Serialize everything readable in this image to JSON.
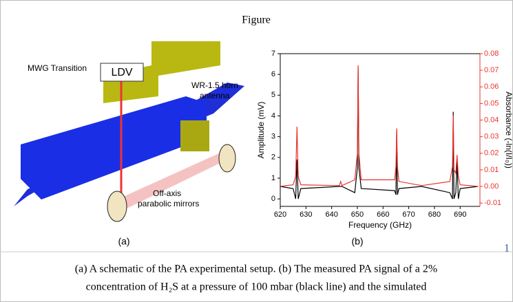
{
  "header": {
    "title": "Figure"
  },
  "panel_a": {
    "label": "(a)",
    "ldv": "LDV",
    "mwg": "MWG Transition",
    "horn": [
      "WR-1.5 horn",
      "antenna"
    ],
    "mirrors": [
      "Off-axis",
      "parabolic mirrors"
    ]
  },
  "chart_data": {
    "type": "line",
    "label": "(b)",
    "xlabel": "Frequency (GHz)",
    "ylabel": "Amplitude (mV)",
    "y2label": "Absorbance (-ln(I/I₀))",
    "xlim": [
      620,
      697.7
    ],
    "xticks": [
      620,
      630,
      640,
      650,
      660,
      670,
      680,
      690
    ],
    "ylim": [
      -0.36,
      7
    ],
    "yticks": [
      0,
      1,
      2,
      3,
      4,
      5,
      6,
      7
    ],
    "y2lim": [
      -0.012,
      0.08
    ],
    "y2ticks": [
      -0.01,
      {
        "value": 0,
        "label": "0.00"
      },
      0.01,
      0.02,
      0.03,
      0.04,
      0.05,
      0.06,
      0.07,
      0.08
    ],
    "x": [
      620,
      625,
      626,
      626.5,
      627,
      628,
      643,
      643.5,
      644,
      649,
      650,
      650.3,
      650.6,
      651.5,
      664.5,
      665,
      665.3,
      665.6,
      666.2,
      675,
      686,
      687,
      687.3,
      687.6,
      688.3,
      688.8,
      689.3,
      690,
      697
    ],
    "series": [
      {
        "color": "#000000",
        "values": [
          0.6,
          0.5,
          0,
          1.9,
          0,
          0.5,
          0.6,
          0.6,
          0.6,
          0.3,
          1.5,
          6.3,
          1.5,
          0.5,
          0.4,
          0.2,
          3.3,
          0.2,
          0.5,
          0.6,
          0.3,
          0,
          4.2,
          0,
          0.3,
          1.8,
          0,
          0.5,
          0.6
        ]
      },
      {
        "color": "#e8342e",
        "axis": "y2",
        "values": [
          0,
          0.001,
          0.006,
          0.036,
          0.006,
          0.001,
          0.0005,
          0.003,
          0.0005,
          0.004,
          0.02,
          0.073,
          0.02,
          0.004,
          0.004,
          0.012,
          0.035,
          0.012,
          0.003,
          0.0005,
          0.003,
          0.012,
          0.043,
          0.01,
          0.008,
          0.019,
          0.006,
          0.001,
          0
        ]
      }
    ]
  },
  "page_number": "1",
  "caption": [
    "(a) A schematic of the PA experimental setup. (b) The measured PA signal of a 2%",
    "concentration of H₂S at a pressure of 100 mbar (black line) and the simulated"
  ]
}
